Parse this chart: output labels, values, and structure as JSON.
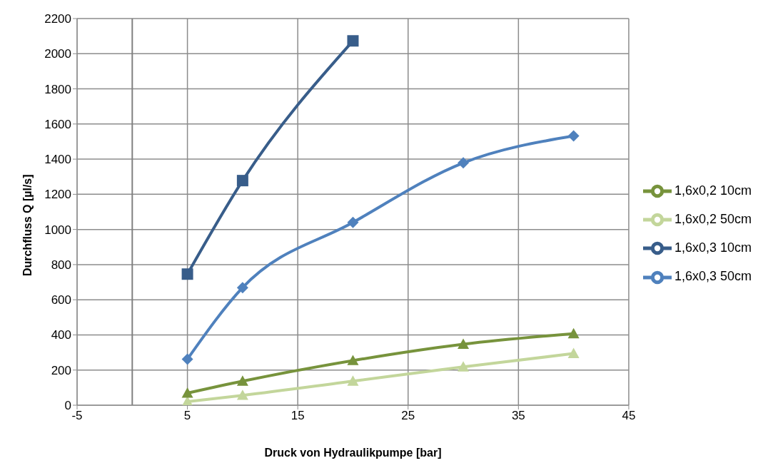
{
  "chart_data": {
    "type": "line",
    "xlabel": "Druck von Hydraulikpumpe [bar]",
    "ylabel": "Durchfluss Q [µl/s]",
    "x": [
      5,
      10,
      20,
      30,
      40
    ],
    "series": [
      {
        "name": "1,6x0,3 50cm",
        "color": "#4f81bd",
        "marker": "diamond",
        "values": [
          262,
          669,
          1040,
          1379,
          1532
        ]
      },
      {
        "name": "1,6x0,3 10cm",
        "color": "#385d8a",
        "marker": "square",
        "values": [
          746,
          1278,
          2073,
          null,
          null
        ]
      },
      {
        "name": "1,6x0,2 50cm",
        "color": "#c3d69b",
        "marker": "triangle",
        "values": [
          20,
          56,
          137,
          218,
          294
        ]
      },
      {
        "name": "1,6x0,2 10cm",
        "color": "#77933c",
        "marker": "triangle",
        "values": [
          69,
          137,
          254,
          347,
          407
        ]
      }
    ],
    "xlim": [
      -5,
      45
    ],
    "xticks": [
      -5,
      5,
      15,
      25,
      35,
      45
    ],
    "ylim": [
      0,
      2200
    ],
    "yticks": [
      0,
      200,
      400,
      600,
      800,
      1000,
      1200,
      1400,
      1600,
      1800,
      2000,
      2200
    ],
    "ref_lines": [
      {
        "axis": "x",
        "value": 0,
        "color": "#808080"
      }
    ],
    "grid": true,
    "legend": "right"
  }
}
